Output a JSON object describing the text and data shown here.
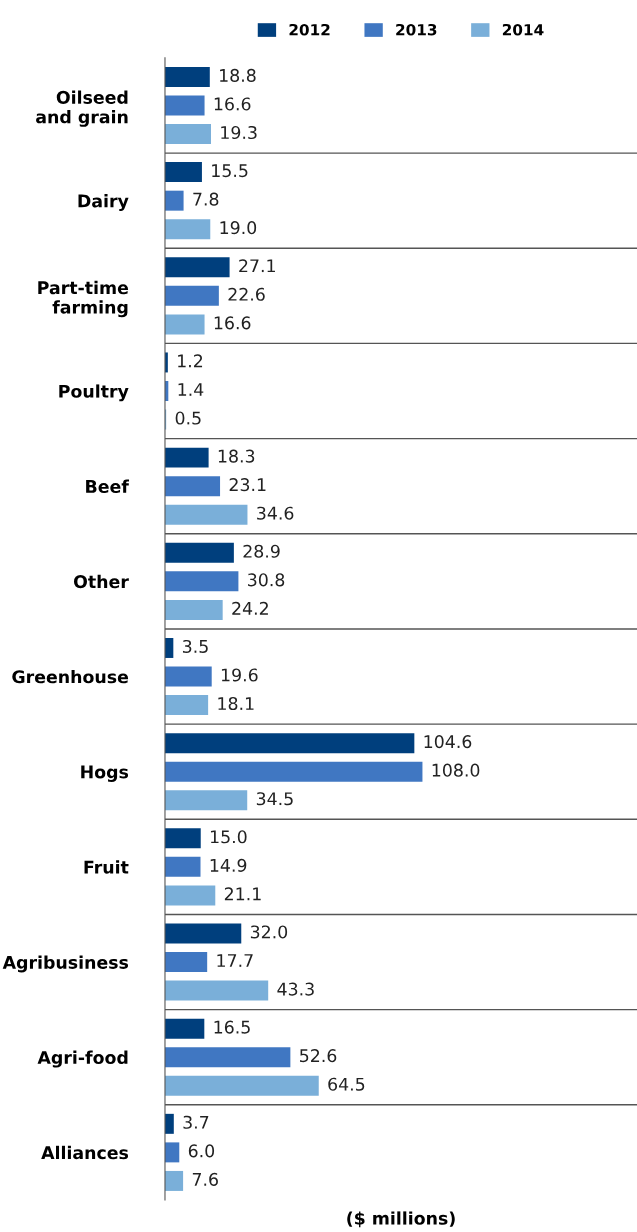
{
  "chart_data": {
    "type": "bar",
    "orientation": "horizontal",
    "xlabel": "($ millions)",
    "categories": [
      "Oilseed\nand grain",
      "Dairy",
      "Part-time\nfarming",
      "Poultry",
      "Beef",
      "Other",
      "Greenhouse",
      "Hogs",
      "Fruit",
      "Agribusiness",
      "Agri-food",
      "Alliances"
    ],
    "series": [
      {
        "name": "2012",
        "color": "#003f7d",
        "values": [
          18.8,
          15.5,
          27.1,
          1.2,
          18.3,
          28.9,
          3.5,
          104.6,
          15.0,
          32.0,
          16.5,
          3.7
        ],
        "value_labels": [
          "18.8",
          "15.5",
          "27.1",
          "1.2",
          "18.3",
          "28.9",
          "3.5",
          "104.6",
          "15.0",
          "32.0",
          "16.5",
          "3.7"
        ]
      },
      {
        "name": "2013",
        "color": "#4077c2",
        "values": [
          16.6,
          7.8,
          22.6,
          1.4,
          23.1,
          30.8,
          19.6,
          108.0,
          14.9,
          17.7,
          52.6,
          6.0
        ],
        "value_labels": [
          "16.6",
          "7.8",
          "22.6",
          "1.4",
          "23.1",
          "30.8",
          "19.6",
          "108.0",
          "14.9",
          "17.7",
          "52.6",
          "6.0"
        ]
      },
      {
        "name": "2014",
        "color": "#7aafd9",
        "values": [
          19.3,
          19.0,
          16.6,
          0.5,
          34.6,
          24.2,
          18.1,
          34.5,
          21.1,
          43.3,
          64.5,
          7.6
        ],
        "value_labels": [
          "19.3",
          "19.0",
          "16.6",
          "0.5",
          "34.6",
          "24.2",
          "18.1",
          "34.5",
          "21.1",
          "43.3",
          "64.5",
          "7.6"
        ]
      }
    ],
    "xlim": [
      0,
      198
    ],
    "tick_labels": "y",
    "legend": "top",
    "grid": "y"
  }
}
